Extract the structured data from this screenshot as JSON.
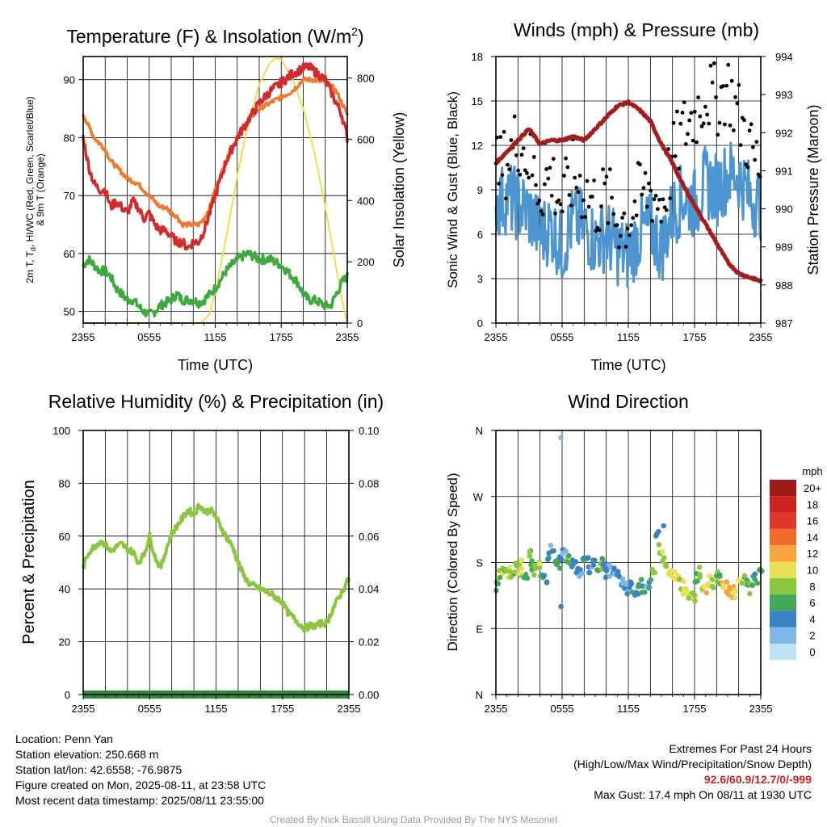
{
  "colors": {
    "red": "#d42a2a",
    "orange": "#f07a2a",
    "green": "#3daa3d",
    "yellow": "#f2dc4a",
    "blue": "#4d95d0",
    "black": "#000000",
    "maroon": "#a51c1c",
    "rh": "#8cc63f",
    "precip": "#2e8b3e"
  },
  "charts": [
    {
      "title_main": "Temperature (F) & Insolation (W/m",
      "title_sup": "2",
      "title_end": ")",
      "xlabel": "Time (UTC)",
      "ylabel_line1": "2m T, T",
      "ylabel_sub": "d",
      "ylabel_line1_end": ", HI/WC (Red, Green, Scarlet/Blue)",
      "ylabel_line2": "& 9m T (Orange)",
      "y2label": "Solar Insolation (Yellow)"
    },
    {
      "title": "Winds (mph) & Pressure (mb)",
      "xlabel": "Time (UTC)",
      "ylabel": "Sonic Wind & Gust (Blue, Black)",
      "y2label": "Station Pressure (Maroon)"
    },
    {
      "title": "Relative Humidity (%) & Precipitation (in)",
      "ylabel": "Percent & Precipitation"
    },
    {
      "title": "Wind Direction",
      "ylabel": "Direction (Colored By Speed)"
    }
  ],
  "chart_data": [
    {
      "type": "line",
      "title": "Temperature (F) & Insolation (W/m2)",
      "xlabel": "Time (UTC)",
      "ylabel": "2m T, Td, HI/WC (Red, Green, Scarlet/Blue) & 9m T (Orange)",
      "y2label": "Solar Insolation (Yellow)",
      "x_ticks": [
        "2355",
        "0555",
        "1155",
        "1755",
        "2355"
      ],
      "x_hours": [
        0,
        6,
        12,
        18,
        24
      ],
      "y_ticks": [
        50,
        60,
        70,
        80,
        90
      ],
      "ylim": [
        48,
        94
      ],
      "y2_ticks": [
        0,
        200,
        400,
        600,
        800
      ],
      "y2lim": [
        0,
        870
      ],
      "grid": true,
      "series": [
        {
          "name": "2m T",
          "color": "red",
          "axis": "y",
          "x": [
            0,
            0.5,
            1,
            1.5,
            2,
            2.5,
            3,
            3.5,
            4,
            4.5,
            5,
            5.5,
            6,
            6.5,
            7,
            7.5,
            8,
            8.5,
            9,
            9.5,
            10,
            10.5,
            11,
            11.5,
            12,
            13,
            14,
            15,
            16,
            17,
            18,
            19,
            19.5,
            20,
            20.5,
            21,
            22,
            22.5,
            23,
            23.5,
            24
          ],
          "y": [
            80,
            75,
            72,
            71,
            71,
            68,
            69,
            68,
            67,
            69,
            68,
            66,
            67,
            65,
            64,
            64,
            63,
            62,
            62,
            61,
            62,
            62,
            64,
            67,
            70,
            76,
            80,
            83,
            86,
            88,
            89.5,
            91,
            91.5,
            92,
            92.2,
            91.5,
            90,
            88,
            86,
            84,
            80
          ]
        },
        {
          "name": "9m T",
          "color": "orange",
          "axis": "y",
          "x": [
            0,
            0.5,
            1,
            1.5,
            2,
            2.5,
            3,
            3.5,
            4,
            4.5,
            5,
            5.5,
            6,
            6.5,
            7,
            7.5,
            8,
            8.5,
            9,
            9.5,
            10,
            10.5,
            11,
            11.5,
            12,
            13,
            14,
            15,
            16,
            17,
            18,
            19,
            19.5,
            20,
            20.5,
            21,
            22,
            22.5,
            23,
            23.5,
            24
          ],
          "y": [
            84,
            82,
            80,
            79,
            78,
            76,
            75,
            74,
            73,
            72.5,
            72,
            71,
            70,
            69,
            68,
            68,
            67,
            66.5,
            65,
            65,
            65,
            65,
            66,
            68,
            71,
            76,
            80,
            83,
            85,
            86,
            87,
            88,
            89,
            90,
            90,
            90,
            89.5,
            89,
            88,
            86,
            84
          ]
        },
        {
          "name": "Td",
          "color": "green",
          "axis": "y",
          "x": [
            0,
            0.5,
            1,
            1.5,
            2,
            2.5,
            3,
            3.5,
            4,
            4.5,
            5,
            5.5,
            6,
            6.5,
            7,
            7.5,
            8,
            8.5,
            9,
            9.5,
            10,
            10.5,
            11,
            11.5,
            12,
            13,
            14,
            15,
            16,
            17,
            18,
            19,
            19.5,
            20,
            20.5,
            21,
            22,
            22.5,
            23,
            23.5,
            24
          ],
          "y": [
            58,
            59,
            58,
            57,
            57,
            56,
            54,
            53,
            52,
            52,
            51,
            50,
            49.5,
            50,
            51,
            51.5,
            52,
            53,
            52,
            52,
            52,
            51.5,
            52,
            53,
            54,
            57,
            59,
            60,
            59,
            59,
            58,
            56,
            55,
            53,
            52,
            52,
            51,
            51,
            53,
            55,
            56
          ]
        },
        {
          "name": "Solar Insolation",
          "color": "yellow",
          "axis": "y2",
          "x": [
            0,
            10.7,
            11.5,
            12,
            13,
            14,
            15,
            16,
            17,
            17.5,
            18,
            19,
            20,
            21,
            22,
            22.5,
            23,
            23.5,
            24
          ],
          "y": [
            0,
            0,
            30,
            100,
            280,
            480,
            650,
            780,
            850,
            865,
            860,
            800,
            700,
            560,
            380,
            280,
            180,
            80,
            0
          ]
        }
      ]
    },
    {
      "type": "line",
      "title": "Winds (mph) & Pressure (mb)",
      "xlabel": "Time (UTC)",
      "ylabel": "Sonic Wind & Gust (Blue, Black)",
      "y2label": "Station Pressure (Maroon)",
      "x_ticks": [
        "2355",
        "0555",
        "1155",
        "1755",
        "2355"
      ],
      "x_hours": [
        0,
        6,
        12,
        18,
        24
      ],
      "y_ticks": [
        0,
        3,
        6,
        9,
        12,
        15,
        18
      ],
      "ylim": [
        0,
        18
      ],
      "y2_ticks": [
        987,
        988,
        989,
        990,
        991,
        992,
        993,
        994
      ],
      "y2lim": [
        987,
        994
      ],
      "grid": true,
      "series": [
        {
          "name": "Sonic Wind",
          "color": "blue",
          "axis": "y",
          "x": [
            0,
            1,
            2,
            3,
            4,
            5,
            6,
            7,
            8,
            9,
            10,
            11,
            12,
            13,
            14,
            15,
            16,
            17,
            18,
            19,
            20,
            21,
            22,
            23,
            24
          ],
          "y": [
            8,
            8.5,
            8,
            7.5,
            6,
            6.5,
            5,
            7,
            6.5,
            5.5,
            6,
            5,
            4.5,
            6,
            6.5,
            5,
            7.5,
            8.5,
            8,
            9.5,
            9,
            10,
            10,
            8.5,
            8
          ]
        },
        {
          "name": "Gust",
          "color": "black",
          "axis": "y",
          "style": "dots",
          "x": [
            0,
            1,
            2,
            3,
            4,
            5,
            6,
            7,
            8,
            9,
            10,
            11,
            12,
            13,
            14,
            15,
            16,
            17,
            18,
            19,
            20,
            21,
            22,
            23,
            24
          ],
          "y": [
            10,
            11,
            12.5,
            11,
            9,
            10,
            8,
            10,
            9,
            8,
            8.5,
            7,
            7,
            8.5,
            9,
            8,
            11,
            13,
            14,
            15.5,
            15,
            16,
            14,
            12,
            10
          ]
        },
        {
          "name": "Station Pressure",
          "color": "maroon",
          "axis": "y2",
          "x": [
            0,
            1,
            2,
            3,
            4,
            5,
            6,
            7,
            8,
            9,
            10,
            11,
            12,
            13,
            14,
            15,
            16,
            17,
            18,
            19,
            20,
            21,
            22,
            23,
            24
          ],
          "y": [
            991.2,
            991.5,
            991.8,
            992.1,
            991.7,
            991.8,
            991.8,
            991.9,
            991.8,
            992.1,
            992.4,
            992.7,
            992.8,
            992.6,
            992.3,
            991.7,
            991.2,
            990.6,
            990.1,
            989.6,
            989.1,
            988.6,
            988.3,
            988.2,
            988.1
          ]
        }
      ]
    },
    {
      "type": "line",
      "title": "Relative Humidity (%) & Precipitation (in)",
      "ylabel": "Percent & Precipitation",
      "x_ticks": [
        "2355",
        "0555",
        "1155",
        "1755",
        "2355"
      ],
      "x_hours": [
        0,
        6,
        12,
        18,
        24
      ],
      "y_ticks": [
        0,
        20,
        40,
        60,
        80,
        100
      ],
      "ylim": [
        0,
        100
      ],
      "y2_ticks": [
        "0.00",
        "0.02",
        "0.04",
        "0.06",
        "0.08",
        "0.10"
      ],
      "y2lim": [
        0,
        0.1
      ],
      "grid": true,
      "series": [
        {
          "name": "Relative Humidity",
          "color": "rh",
          "axis": "y",
          "x": [
            0,
            0.5,
            1,
            1.5,
            2,
            2.5,
            3,
            3.5,
            4,
            4.5,
            5,
            5.5,
            6,
            6.5,
            7,
            7.5,
            8,
            8.5,
            9,
            9.5,
            10,
            10.5,
            11,
            11.5,
            12,
            12.5,
            13,
            13.5,
            14,
            14.5,
            15,
            16,
            17,
            18,
            18.5,
            19,
            19.5,
            20,
            20.5,
            21,
            21.5,
            22,
            22.5,
            23,
            23.5,
            24
          ],
          "y": [
            48,
            54,
            56,
            58,
            57,
            54,
            56,
            57,
            55,
            54,
            50,
            53,
            60,
            52,
            48,
            55,
            61,
            64,
            67,
            70,
            68,
            72,
            69,
            70,
            67,
            63,
            59,
            56,
            50,
            45,
            42,
            40,
            38,
            35,
            31,
            29,
            27,
            25,
            26,
            26,
            27,
            27,
            32,
            36,
            40,
            44
          ]
        },
        {
          "name": "Precipitation",
          "color": "precip",
          "axis": "y2",
          "x": [
            0,
            24
          ],
          "y": [
            0,
            0
          ]
        }
      ]
    },
    {
      "type": "scatter",
      "title": "Wind Direction",
      "ylabel": "Direction (Colored By Speed)",
      "x_ticks": [
        "2355",
        "0555",
        "1155",
        "1755",
        "2355"
      ],
      "x_hours": [
        0,
        6,
        12,
        18,
        24
      ],
      "y_ticks": [
        "N",
        "E",
        "S",
        "W",
        "N"
      ],
      "y_degrees": [
        0,
        90,
        180,
        270,
        360
      ],
      "ylim": [
        0,
        360
      ],
      "grid": true,
      "legend_title": "mph",
      "legend_labels": [
        "20+",
        "18",
        "16",
        "14",
        "12",
        "10",
        "8",
        "6",
        "4",
        "2",
        "0"
      ],
      "legend_colors": [
        "#a11a1a",
        "#cc2222",
        "#e0382b",
        "#f06a2b",
        "#f7a33e",
        "#e8e056",
        "#8cc63f",
        "#44a85a",
        "#3a82c4",
        "#7fb8e4",
        "#bfe3f7"
      ],
      "series": [
        {
          "name": "Direction",
          "x": [
            0,
            0.3,
            0.6,
            0.9,
            1.2,
            1.5,
            1.8,
            2.1,
            2.4,
            2.7,
            3,
            3.3,
            3.6,
            3.9,
            4.2,
            4.5,
            4.8,
            5.1,
            5.4,
            5.7,
            5.9,
            6.2,
            6.5,
            6.8,
            7.1,
            7.4,
            7.7,
            8,
            8.3,
            8.6,
            8.9,
            9.2,
            9.5,
            9.8,
            10.1,
            10.4,
            10.7,
            11,
            11.3,
            11.6,
            11.9,
            12.2,
            12.5,
            12.8,
            13.1,
            13.4,
            13.7,
            14,
            14.3,
            14.6,
            14.9,
            15.2,
            15.5,
            15.8,
            16.1,
            16.4,
            16.7,
            17,
            17.3,
            17.6,
            17.9,
            18.2,
            18.5,
            18.8,
            19.1,
            19.4,
            19.7,
            20,
            20.3,
            20.6,
            20.9,
            21.2,
            21.5,
            21.8,
            22.1,
            22.4,
            22.7,
            23,
            23.3,
            23.6,
            24,
            5.9,
            5.9,
            15.2
          ],
          "y": [
            150,
            160,
            165,
            170,
            165,
            160,
            170,
            168,
            175,
            165,
            190,
            175,
            170,
            178,
            165,
            160,
            185,
            195,
            178,
            175,
            180,
            200,
            185,
            175,
            178,
            170,
            165,
            180,
            178,
            172,
            175,
            170,
            178,
            175,
            168,
            170,
            165,
            160,
            155,
            150,
            145,
            148,
            140,
            145,
            150,
            142,
            150,
            155,
            170,
            215,
            200,
            190,
            170,
            165,
            160,
            155,
            150,
            145,
            140,
            138,
            135,
            160,
            165,
            150,
            145,
            155,
            150,
            160,
            155,
            150,
            145,
            140,
            140,
            135,
            150,
            155,
            150,
            145,
            155,
            160,
            165,
            350,
            120,
            230
          ],
          "speed": [
            8,
            8,
            9,
            7,
            10,
            8,
            8,
            9,
            10,
            7,
            8,
            6,
            8,
            9,
            7,
            6,
            5,
            4,
            7,
            6,
            5,
            4,
            7,
            6,
            5,
            4,
            3,
            6,
            5,
            4,
            5,
            6,
            7,
            5,
            4,
            3,
            4,
            5,
            4,
            3,
            3,
            4,
            5,
            6,
            7,
            5,
            3,
            6,
            8,
            4,
            9,
            10,
            9,
            10,
            11,
            10,
            9,
            10,
            11,
            10,
            9,
            7,
            8,
            10,
            11,
            10,
            9,
            8,
            7,
            11,
            12,
            13,
            12,
            11,
            9,
            8,
            7,
            8,
            7,
            6,
            7,
            3,
            4,
            5
          ]
        }
      ]
    }
  ],
  "info_left": [
    "Location: Penn Yan",
    "Station elevation: 250.668 m",
    "Station lat/lon: 42.6558; -76.9875",
    "Figure created on Mon, 2025-08-11, at 23:58 UTC",
    "Most recent data timestamp: 2025/08/11 23:55:00"
  ],
  "extremes": {
    "line1": "Extremes For Past 24 Hours",
    "line2": "(High/Low/Max Wind/Precipitation/Snow Depth)",
    "values": "92.6/60.9/12.7/0/-999",
    "gust": "Max Gust: 17.4 mph On 08/11 at 1930 UTC"
  },
  "credit": "Created By Nick Bassill Using Data Provided By The NYS Mesonet"
}
